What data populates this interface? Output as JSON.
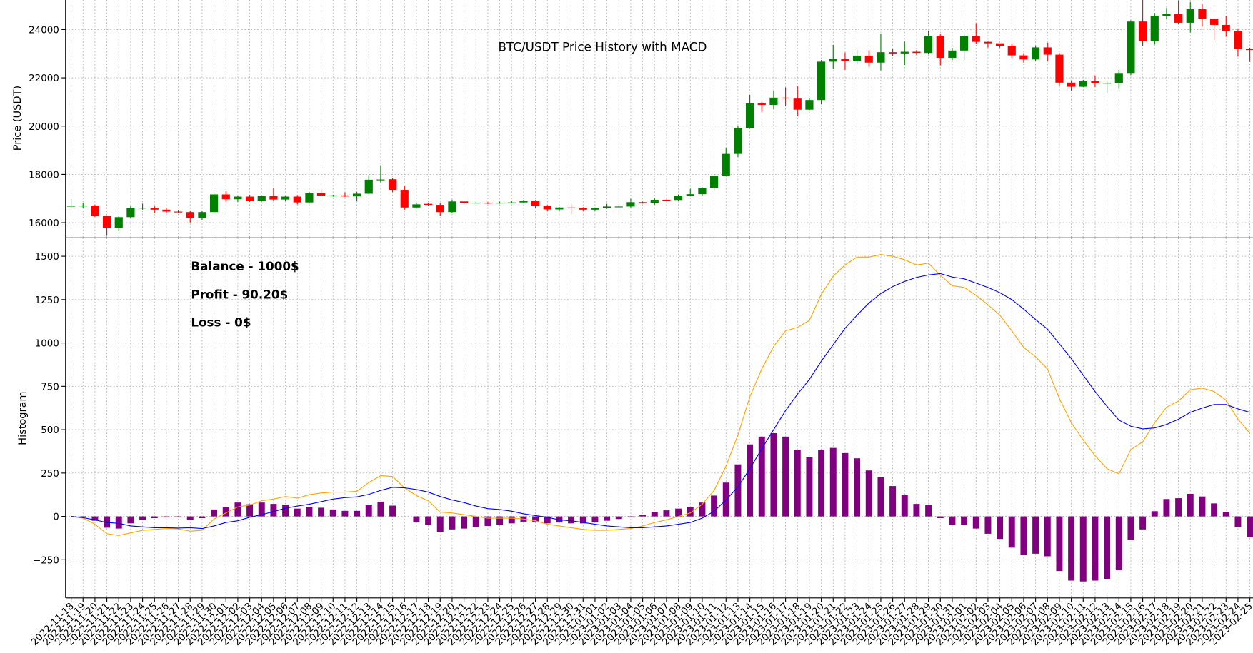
{
  "chart_data": [
    {
      "type": "candlestick",
      "title": "BTC/USDT Price History with MACD",
      "ylabel": "Price (USDT)",
      "up_color": "green",
      "down_color": "red",
      "ylim": [
        15372,
        25223
      ],
      "yticks": [
        16000,
        18000,
        20000,
        22000,
        24000
      ],
      "grid": true,
      "open": [
        16690,
        16700,
        16710,
        16280,
        15780,
        16230,
        16600,
        16620,
        16540,
        16460,
        16440,
        16210,
        16440,
        17170,
        16970,
        17080,
        16890,
        17100,
        16960,
        17080,
        16840,
        17220,
        17120,
        17130,
        17090,
        17200,
        17780,
        17800,
        17360,
        16630,
        16780,
        16740,
        16440,
        16880,
        16820,
        16830,
        16820,
        16830,
        16840,
        16920,
        16700,
        16550,
        16630,
        16600,
        16540,
        16610,
        16670,
        16670,
        16850,
        16830,
        16950,
        16940,
        17120,
        17180,
        17440,
        17940,
        18850,
        19930,
        20950,
        20880,
        21180,
        21140,
        20680,
        21080,
        22670,
        22780,
        22710,
        22920,
        22630,
        23060,
        23010,
        23080,
        23030,
        23740,
        22830,
        23130,
        23730,
        23490,
        23430,
        23330,
        22930,
        22760,
        23260,
        22960,
        21800,
        21630,
        21860,
        21780,
        21790,
        22200,
        24330,
        23520,
        24570,
        24640,
        24280,
        24840,
        24450,
        24190,
        23940,
        23190
      ],
      "high": [
        16990,
        16810,
        16750,
        16300,
        16280,
        16700,
        16790,
        16680,
        16610,
        16530,
        16490,
        16490,
        17220,
        17330,
        17100,
        17160,
        17120,
        17420,
        17100,
        17140,
        17270,
        17380,
        17160,
        17260,
        17280,
        17970,
        18380,
        17850,
        17530,
        16800,
        16810,
        16800,
        16960,
        16900,
        16860,
        16850,
        16870,
        16890,
        16940,
        16940,
        16730,
        16650,
        16780,
        16640,
        16630,
        16780,
        16700,
        16990,
        16870,
        17010,
        16960,
        17170,
        17400,
        17470,
        18000,
        19100,
        19990,
        21300,
        21000,
        21450,
        21600,
        21650,
        21150,
        22740,
        23360,
        23050,
        23160,
        23140,
        23820,
        23200,
        23500,
        23150,
        23960,
        23800,
        23240,
        23820,
        24260,
        23500,
        23420,
        23410,
        23020,
        23340,
        23450,
        23030,
        21860,
        21910,
        22100,
        21880,
        22330,
        24380,
        25250,
        24680,
        24890,
        25200,
        25140,
        25050,
        24460,
        24560,
        24050,
        23250
      ],
      "low": [
        16600,
        16610,
        16240,
        15480,
        15650,
        16170,
        16540,
        16400,
        16410,
        16390,
        16010,
        16120,
        16430,
        16870,
        16860,
        16870,
        16880,
        16910,
        16900,
        16760,
        16790,
        17100,
        17080,
        17060,
        16920,
        17180,
        17670,
        17270,
        16540,
        16580,
        16700,
        16280,
        16410,
        16770,
        16790,
        16780,
        16790,
        16800,
        16800,
        16600,
        16480,
        16470,
        16350,
        16500,
        16490,
        16570,
        16640,
        16620,
        16790,
        16740,
        16920,
        16910,
        17090,
        17110,
        17330,
        17920,
        18720,
        19890,
        20590,
        20700,
        20820,
        20410,
        20660,
        20900,
        22390,
        22330,
        22560,
        22460,
        22310,
        22890,
        22530,
        22940,
        22990,
        22520,
        22730,
        22740,
        23420,
        23250,
        23250,
        22830,
        22630,
        22710,
        22690,
        21680,
        21460,
        21620,
        21620,
        21360,
        21540,
        22110,
        23330,
        23380,
        24450,
        24210,
        23880,
        24120,
        23550,
        23700,
        22880,
        22660
      ],
      "close": [
        16700,
        16710,
        16280,
        15780,
        16230,
        16610,
        16620,
        16540,
        16460,
        16440,
        16210,
        16440,
        17170,
        16970,
        17080,
        16890,
        17100,
        16960,
        17080,
        16840,
        17220,
        17120,
        17130,
        17090,
        17200,
        17780,
        17790,
        17360,
        16630,
        16760,
        16740,
        16440,
        16880,
        16820,
        16830,
        16820,
        16830,
        16840,
        16920,
        16700,
        16550,
        16630,
        16600,
        16540,
        16610,
        16670,
        16670,
        16850,
        16830,
        16950,
        16940,
        17120,
        17180,
        17440,
        17940,
        18850,
        19930,
        20950,
        20880,
        21180,
        21140,
        20680,
        21080,
        22670,
        22780,
        22710,
        22920,
        22630,
        23060,
        23010,
        23080,
        23030,
        23740,
        22830,
        23130,
        23730,
        23490,
        23430,
        23330,
        22930,
        22760,
        23260,
        22960,
        21800,
        21630,
        21860,
        21780,
        21790,
        22200,
        24330,
        23520,
        24570,
        24640,
        24280,
        24840,
        24450,
        24190,
        23940,
        23190,
        23150
      ]
    },
    {
      "type": "macd",
      "ylabel": "Histogram",
      "categories": [
        "2022-11-18",
        "2022-11-19",
        "2022-11-20",
        "2022-11-21",
        "2022-11-22",
        "2022-11-23",
        "2022-11-24",
        "2022-11-25",
        "2022-11-26",
        "2022-11-27",
        "2022-11-28",
        "2022-11-29",
        "2022-11-30",
        "2022-12-01",
        "2022-12-02",
        "2022-12-03",
        "2022-12-04",
        "2022-12-05",
        "2022-12-06",
        "2022-12-07",
        "2022-12-08",
        "2022-12-09",
        "2022-12-10",
        "2022-12-11",
        "2022-12-12",
        "2022-12-13",
        "2022-12-14",
        "2022-12-15",
        "2022-12-16",
        "2022-12-17",
        "2022-12-18",
        "2022-12-19",
        "2022-12-20",
        "2022-12-21",
        "2022-12-22",
        "2022-12-23",
        "2022-12-24",
        "2022-12-25",
        "2022-12-26",
        "2022-12-27",
        "2022-12-28",
        "2022-12-29",
        "2022-12-30",
        "2022-12-31",
        "2023-01-01",
        "2023-01-02",
        "2023-01-03",
        "2023-01-04",
        "2023-01-05",
        "2023-01-06",
        "2023-01-07",
        "2023-01-08",
        "2023-01-09",
        "2023-01-10",
        "2023-01-11",
        "2023-01-12",
        "2023-01-13",
        "2023-01-14",
        "2023-01-15",
        "2023-01-16",
        "2023-01-17",
        "2023-01-18",
        "2023-01-19",
        "2023-01-20",
        "2023-01-21",
        "2023-01-22",
        "2023-01-23",
        "2023-01-24",
        "2023-01-25",
        "2023-01-26",
        "2023-01-27",
        "2023-01-28",
        "2023-01-29",
        "2023-01-30",
        "2023-01-31",
        "2023-02-01",
        "2023-02-02",
        "2023-02-03",
        "2023-02-04",
        "2023-02-05",
        "2023-02-06",
        "2023-02-07",
        "2023-02-08",
        "2023-02-09",
        "2023-02-10",
        "2023-02-11",
        "2023-02-12",
        "2023-02-13",
        "2023-02-14",
        "2023-02-15",
        "2023-02-16",
        "2023-02-17",
        "2023-02-18",
        "2023-02-19",
        "2023-02-20",
        "2023-02-21",
        "2023-02-22",
        "2023-02-23",
        "2023-02-24",
        "2023-02-25"
      ],
      "histogram": {
        "color": "purple",
        "values": [
          0,
          -3,
          -25,
          -65,
          -70,
          -40,
          -20,
          -10,
          -5,
          -5,
          -20,
          -10,
          40,
          55,
          80,
          70,
          80,
          72,
          68,
          45,
          55,
          50,
          40,
          32,
          32,
          68,
          85,
          62,
          0,
          -35,
          -50,
          -90,
          -75,
          -70,
          -60,
          -55,
          -50,
          -40,
          -30,
          -30,
          -40,
          -35,
          -40,
          -40,
          -35,
          -25,
          -15,
          -5,
          10,
          25,
          35,
          45,
          55,
          80,
          120,
          195,
          300,
          415,
          460,
          480,
          460,
          385,
          340,
          385,
          395,
          365,
          335,
          265,
          225,
          175,
          125,
          72,
          68,
          -10,
          -50,
          -50,
          -70,
          -100,
          -130,
          -180,
          -220,
          -215,
          -230,
          -315,
          -370,
          -375,
          -370,
          -360,
          -310,
          -135,
          -75,
          30,
          100,
          105,
          130,
          115,
          75,
          25,
          -60,
          -120
        ]
      },
      "macd": {
        "color": "orange",
        "values": [
          0,
          -10,
          -45,
          -100,
          -110,
          -95,
          -80,
          -75,
          -70,
          -72,
          -85,
          -80,
          -15,
          20,
          55,
          65,
          90,
          100,
          115,
          105,
          125,
          135,
          140,
          140,
          145,
          195,
          235,
          230,
          165,
          120,
          90,
          25,
          20,
          10,
          0,
          -10,
          -10,
          -10,
          -15,
          -25,
          -45,
          -55,
          -65,
          -75,
          -80,
          -80,
          -75,
          -70,
          -55,
          -35,
          -20,
          0,
          20,
          70,
          150,
          290,
          470,
          690,
          850,
          980,
          1070,
          1090,
          1130,
          1280,
          1385,
          1450,
          1495,
          1495,
          1510,
          1500,
          1480,
          1450,
          1460,
          1390,
          1330,
          1320,
          1275,
          1220,
          1160,
          1070,
          975,
          920,
          850,
          680,
          540,
          440,
          350,
          275,
          245,
          385,
          430,
          540,
          630,
          665,
          730,
          740,
          720,
          670,
          560,
          480
        ]
      },
      "signal": {
        "color": "blue",
        "values": [
          0,
          -7,
          -20,
          -35,
          -40,
          -55,
          -60,
          -65,
          -65,
          -67,
          -65,
          -70,
          -55,
          -35,
          -25,
          -5,
          10,
          28,
          47,
          60,
          70,
          85,
          100,
          108,
          113,
          127,
          150,
          168,
          165,
          155,
          140,
          115,
          95,
          80,
          60,
          45,
          40,
          30,
          15,
          5,
          -5,
          -20,
          -25,
          -35,
          -45,
          -55,
          -60,
          -65,
          -65,
          -60,
          -55,
          -45,
          -35,
          -10,
          30,
          95,
          170,
          275,
          390,
          500,
          610,
          705,
          790,
          895,
          990,
          1085,
          1160,
          1230,
          1285,
          1325,
          1355,
          1378,
          1392,
          1400,
          1380,
          1370,
          1345,
          1320,
          1290,
          1250,
          1195,
          1135,
          1080,
          995,
          910,
          815,
          720,
          635,
          555,
          520,
          505,
          510,
          530,
          560,
          600,
          625,
          645,
          645,
          620,
          600
        ]
      },
      "ylim": [
        -470,
        1606
      ],
      "yticks": [
        {
          "value": -250,
          "label": "−250"
        },
        0,
        250,
        500,
        750,
        1000,
        1250,
        1500
      ],
      "grid": true,
      "annotations": [
        {
          "text": "Balance - 1000$",
          "color": "black"
        },
        {
          "text": "Profit - 90.20$",
          "color": "green"
        },
        {
          "text": "Loss - 0$",
          "color": "red"
        }
      ]
    }
  ]
}
